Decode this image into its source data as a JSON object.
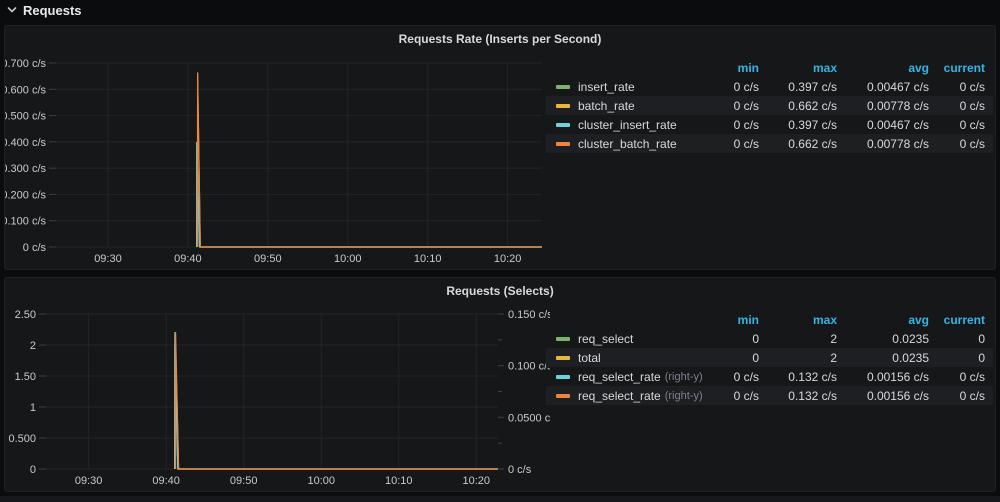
{
  "page": {
    "row_header": "Requests"
  },
  "panels": [
    {
      "title": "Requests Rate (Inserts per Second)",
      "legend": {
        "headers": [
          "min",
          "max",
          "avg",
          "current"
        ],
        "rows": [
          {
            "label": "insert_rate",
            "suffix": "",
            "color": "#7EB26D",
            "min": "0 c/s",
            "max": "0.397 c/s",
            "avg": "0.00467 c/s",
            "current": "0 c/s"
          },
          {
            "label": "batch_rate",
            "suffix": "",
            "color": "#EAB839",
            "min": "0 c/s",
            "max": "0.662 c/s",
            "avg": "0.00778 c/s",
            "current": "0 c/s"
          },
          {
            "label": "cluster_insert_rate",
            "suffix": "",
            "color": "#6ED0E0",
            "min": "0 c/s",
            "max": "0.397 c/s",
            "avg": "0.00467 c/s",
            "current": "0 c/s"
          },
          {
            "label": "cluster_batch_rate",
            "suffix": "",
            "color": "#EF843C",
            "min": "0 c/s",
            "max": "0.662 c/s",
            "avg": "0.00778 c/s",
            "current": "0 c/s"
          }
        ]
      }
    },
    {
      "title": "Requests (Selects)",
      "legend": {
        "headers": [
          "min",
          "max",
          "avg",
          "current"
        ],
        "rows": [
          {
            "label": "req_select",
            "suffix": "",
            "color": "#7EB26D",
            "min": "0",
            "max": "2",
            "avg": "0.0235",
            "current": "0"
          },
          {
            "label": "total",
            "suffix": "",
            "color": "#EAB839",
            "min": "0",
            "max": "2",
            "avg": "0.0235",
            "current": "0"
          },
          {
            "label": "req_select_rate",
            "suffix": "(right-y)",
            "color": "#6ED0E0",
            "min": "0 c/s",
            "max": "0.132 c/s",
            "avg": "0.00156 c/s",
            "current": "0 c/s"
          },
          {
            "label": "req_select_rate",
            "suffix": "(right-y)",
            "color": "#EF843C",
            "min": "0 c/s",
            "max": "0.132 c/s",
            "avg": "0.00156 c/s",
            "current": "0 c/s"
          }
        ]
      }
    }
  ],
  "chart_data": [
    {
      "type": "line",
      "title": "Requests Rate (Inserts per Second)",
      "x_unit": "time of day (minutes after 09:00)",
      "xlim": [
        23.5,
        84.3
      ],
      "xticks": [
        {
          "v": 30,
          "label": "09:30"
        },
        {
          "v": 40,
          "label": "09:40"
        },
        {
          "v": 50,
          "label": "09:50"
        },
        {
          "v": 60,
          "label": "10:00"
        },
        {
          "v": 70,
          "label": "10:10"
        },
        {
          "v": 80,
          "label": "10:20"
        }
      ],
      "ylim": [
        0,
        0.7
      ],
      "yticks": [
        {
          "v": 0.7,
          "label": "0.700 c/s"
        },
        {
          "v": 0.6,
          "label": "0.600 c/s"
        },
        {
          "v": 0.5,
          "label": "0.500 c/s"
        },
        {
          "v": 0.4,
          "label": "0.400 c/s"
        },
        {
          "v": 0.3,
          "label": "0.300 c/s"
        },
        {
          "v": 0.2,
          "label": "0.200 c/s"
        },
        {
          "v": 0.1,
          "label": "0.100 c/s"
        },
        {
          "v": 0,
          "label": "0 c/s"
        }
      ],
      "y2lim": null,
      "y2ticks": null,
      "legend_position": "right",
      "grid": true,
      "series": [
        {
          "name": "insert_rate",
          "color": "#7EB26D",
          "axis": "left",
          "points": [
            [
              41.1,
              0
            ],
            [
              41.12,
              0.397
            ],
            [
              41.45,
              0
            ],
            [
              84.3,
              0
            ]
          ]
        },
        {
          "name": "batch_rate",
          "color": "#EAB839",
          "axis": "left",
          "points": [
            [
              41.2,
              0
            ],
            [
              41.22,
              0.662
            ],
            [
              41.55,
              0
            ],
            [
              84.3,
              0
            ]
          ]
        },
        {
          "name": "cluster_insert_rate",
          "color": "#6ED0E0",
          "axis": "left",
          "points": [
            [
              41.1,
              0
            ],
            [
              41.12,
              0.397
            ],
            [
              41.45,
              0
            ],
            [
              84.3,
              0
            ]
          ]
        },
        {
          "name": "cluster_batch_rate",
          "color": "#EF843C",
          "axis": "left",
          "points": [
            [
              41.2,
              0
            ],
            [
              41.22,
              0.662
            ],
            [
              41.55,
              0
            ],
            [
              84.3,
              0
            ]
          ]
        }
      ]
    },
    {
      "type": "line",
      "title": "Requests (Selects)",
      "x_unit": "time of day (minutes after 09:00)",
      "xlim": [
        24.5,
        82.8
      ],
      "xticks": [
        {
          "v": 30,
          "label": "09:30"
        },
        {
          "v": 40,
          "label": "09:40"
        },
        {
          "v": 50,
          "label": "09:50"
        },
        {
          "v": 60,
          "label": "10:00"
        },
        {
          "v": 70,
          "label": "10:10"
        },
        {
          "v": 80,
          "label": "10:20"
        }
      ],
      "ylim": [
        0,
        2.5
      ],
      "yticks": [
        {
          "v": 2.5,
          "label": "2.50"
        },
        {
          "v": 2,
          "label": "2"
        },
        {
          "v": 1.5,
          "label": "1.50"
        },
        {
          "v": 1,
          "label": "1"
        },
        {
          "v": 0.5,
          "label": "0.500"
        },
        {
          "v": 0,
          "label": "0"
        }
      ],
      "y2lim": [
        0,
        0.15
      ],
      "y2ticks": [
        {
          "v": 0.15,
          "label": "0.150 c/s"
        },
        {
          "v": 0.1,
          "label": "0.100 c/s"
        },
        {
          "v": 0.05,
          "label": "0.0500 c/s"
        },
        {
          "v": 0,
          "label": "0 c/s"
        }
      ],
      "legend_position": "right",
      "grid": true,
      "series": [
        {
          "name": "req_select",
          "color": "#7EB26D",
          "axis": "left",
          "points": [
            [
              41.1,
              0
            ],
            [
              41.12,
              2
            ],
            [
              41.5,
              0
            ],
            [
              82.8,
              0
            ]
          ]
        },
        {
          "name": "total",
          "color": "#EAB839",
          "axis": "left",
          "points": [
            [
              41.2,
              0
            ],
            [
              41.22,
              2
            ],
            [
              41.6,
              0
            ],
            [
              82.8,
              0
            ]
          ]
        },
        {
          "name": "req_select_rate",
          "color": "#6ED0E0",
          "axis": "right",
          "points": [
            [
              41.1,
              0
            ],
            [
              41.12,
              0.132
            ],
            [
              41.5,
              0
            ],
            [
              82.8,
              0
            ]
          ]
        },
        {
          "name": "req_select_rate",
          "color": "#EF843C",
          "axis": "right",
          "points": [
            [
              41.2,
              0
            ],
            [
              41.22,
              0.132
            ],
            [
              41.6,
              0
            ],
            [
              82.8,
              0
            ]
          ]
        }
      ]
    }
  ]
}
